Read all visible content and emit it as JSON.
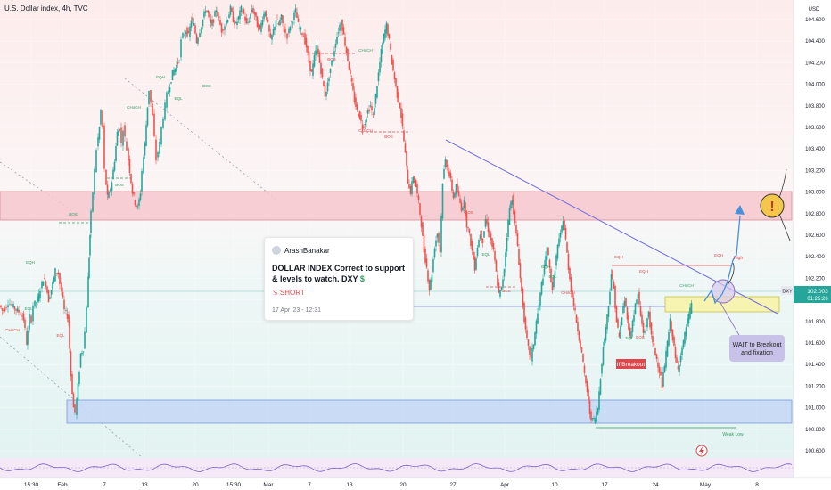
{
  "header": {
    "title": "U.S. Dollar index, 4h, TVC",
    "currency": "USD"
  },
  "idea_card": {
    "author": "ArashBanakar",
    "title": "DOLLAR INDEX Correct to support & levels to watch. DXY",
    "ticker_symbol": "$",
    "direction": "↘ SHORT",
    "date": "17 Apr '23 - 12:31"
  },
  "price_axis": {
    "ticks": [
      "104.600",
      "104.400",
      "104.200",
      "104.000",
      "103.800",
      "103.600",
      "103.400",
      "103.200",
      "103.000",
      "102.800",
      "102.600",
      "102.400",
      "102.200",
      "102.000",
      "101.800",
      "101.600",
      "101.400",
      "101.200",
      "101.000",
      "100.800",
      "100.600"
    ],
    "current_symbol": "DXY",
    "current_price": "102.003",
    "current_timer": "01:25:26"
  },
  "time_axis": {
    "labels": [
      "15:30",
      "Feb",
      "7",
      "13",
      "20",
      "15:30",
      "Mar",
      "7",
      "13",
      "20",
      "27",
      "Apr",
      "10",
      "17",
      "24",
      "May",
      "8"
    ]
  },
  "annotations": {
    "wait_note": [
      "WAIT to Breakout",
      "and fixation"
    ],
    "if_breakout": "If Breakout",
    "weak_low": "Weak Low",
    "high": "High",
    "alert_mark": "!"
  },
  "structure_labels": [
    "EQH",
    "EQL",
    "CHoCH",
    "BOS",
    "EQL",
    "CHoCH",
    "BOS",
    "EQH",
    "EQL",
    "BOS",
    "CHoCH",
    "BOS",
    "CHoCH",
    "BOS",
    "EQL",
    "BOS",
    "EQH",
    "EQL",
    "BOS",
    "CHoCH",
    "EQH",
    "EQH",
    "EQL",
    "BOS",
    "CHoCH",
    "EQH"
  ],
  "colors": {
    "up": "#26a69a",
    "down": "#ef5350",
    "resistance_zone": "#f4c7cd",
    "support_zone": "#c7d8f6",
    "trendline": "#6f6be0",
    "projection": "#4a90d9",
    "highlight": "#f7f3b0",
    "note_bg": "#c9c2e8",
    "alert": "#f3c64c"
  },
  "chart_data": {
    "type": "candlestick",
    "title": "U.S. Dollar index, 4h, TVC",
    "ylim": [
      100.5,
      104.7
    ],
    "zones": [
      {
        "name": "resistance",
        "from": 102.66,
        "to": 102.9
      },
      {
        "name": "support",
        "from": 100.82,
        "to": 101.05
      },
      {
        "name": "breakout_box",
        "from": 101.87,
        "to": 102.0
      }
    ],
    "path_x": [
      0,
      3,
      6,
      10,
      14,
      17,
      20,
      24,
      27,
      29,
      30,
      32,
      34,
      36,
      38,
      41,
      44,
      46,
      49,
      52,
      55,
      58,
      61,
      63,
      66,
      68,
      71,
      73,
      76,
      77,
      80,
      83,
      85,
      88,
      91,
      94,
      96,
      98,
      99,
      100,
      101,
      103,
      105,
      107,
      109,
      112,
      114,
      116,
      118,
      121,
      123,
      126,
      129,
      132,
      135,
      137,
      139,
      143,
      146,
      149,
      152,
      155,
      158,
      160,
      163,
      166,
      168,
      172,
      174,
      176,
      180,
      182,
      186,
      188,
      191,
      194,
      197,
      200,
      202,
      204,
      206,
      209,
      212,
      215,
      218,
      221,
      225,
      228,
      231,
      234,
      237,
      240,
      243,
      246,
      249,
      253,
      256,
      259,
      262,
      265,
      268,
      271,
      274,
      277,
      280,
      283,
      286,
      289,
      292,
      295,
      298,
      301,
      304,
      307,
      310,
      313,
      316,
      319,
      323,
      326,
      329,
      332,
      335,
      338,
      341,
      344,
      347,
      350,
      353,
      356,
      359,
      362,
      365,
      368,
      371,
      374,
      377,
      380,
      383,
      386,
      389,
      392,
      395,
      398,
      401,
      404,
      407,
      410,
      413,
      416,
      419,
      422,
      425,
      428,
      431,
      434,
      437,
      440,
      443,
      446,
      449,
      452,
      455,
      458,
      461,
      464,
      467,
      470,
      473,
      476,
      479,
      482,
      485,
      488,
      491,
      494,
      497,
      500,
      503,
      506,
      509,
      512,
      515,
      518,
      521,
      524,
      527,
      530,
      533,
      536,
      539,
      542,
      545,
      548,
      551,
      554,
      557,
      560,
      563,
      566,
      569,
      572,
      575,
      578,
      581,
      584,
      587,
      590,
      593,
      596,
      599,
      602,
      605,
      608,
      611,
      614,
      617,
      620,
      623,
      626,
      629,
      632,
      635,
      638,
      641,
      644,
      647,
      650,
      653,
      656,
      659,
      662,
      665,
      668,
      671,
      674,
      677,
      680,
      683,
      686,
      689,
      692,
      695,
      698,
      701,
      704,
      707,
      710,
      713,
      716,
      719,
      722,
      725,
      728,
      731,
      734,
      737,
      740,
      743,
      746,
      749,
      752,
      755,
      758,
      761,
      764,
      767,
      770,
      773,
      776,
      779,
      782,
      785,
      788
    ],
    "path_y": [
      101.95,
      101.9,
      101.92,
      101.98,
      101.95,
      101.92,
      101.9,
      101.88,
      101.82,
      101.72,
      101.6,
      101.7,
      101.85,
      101.82,
      101.95,
      101.98,
      102.04,
      102.1,
      102.2,
      102.15,
      102.0,
      102.1,
      102.2,
      102.27,
      102.25,
      102.15,
      102.0,
      101.9,
      101.85,
      101.8,
      101.3,
      101.0,
      100.95,
      101.2,
      101.5,
      101.55,
      101.7,
      101.95,
      102.2,
      102.4,
      102.6,
      102.8,
      103.0,
      103.2,
      103.4,
      103.6,
      103.75,
      103.6,
      103.2,
      102.95,
      102.98,
      103.1,
      103.3,
      103.55,
      103.6,
      103.45,
      103.6,
      103.4,
      103.2,
      103.0,
      102.9,
      102.85,
      103.0,
      103.2,
      103.45,
      103.8,
      103.95,
      103.7,
      103.5,
      103.3,
      103.45,
      103.6,
      103.8,
      103.9,
      104.0,
      104.1,
      104.15,
      104.2,
      104.25,
      104.4,
      104.45,
      104.5,
      104.45,
      104.6,
      104.55,
      104.4,
      104.5,
      104.6,
      104.7,
      104.65,
      104.55,
      104.6,
      104.7,
      104.6,
      104.5,
      104.55,
      104.62,
      104.7,
      104.6,
      104.55,
      104.62,
      104.7,
      104.65,
      104.55,
      104.6,
      104.7,
      104.65,
      104.55,
      104.5,
      104.62,
      104.68,
      104.55,
      104.4,
      104.5,
      104.6,
      104.55,
      104.62,
      104.5,
      104.45,
      104.55,
      104.6,
      104.68,
      104.55,
      104.5,
      104.45,
      104.35,
      104.2,
      104.1,
      104.25,
      104.35,
      104.2,
      104.05,
      103.9,
      104.0,
      104.15,
      104.25,
      104.4,
      104.5,
      104.6,
      104.45,
      104.3,
      104.15,
      104.0,
      103.85,
      103.75,
      103.7,
      103.6,
      103.65,
      103.75,
      103.8,
      103.7,
      103.9,
      104.1,
      104.3,
      104.45,
      104.55,
      104.4,
      104.2,
      104.05,
      103.9,
      103.8,
      103.6,
      103.35,
      103.1,
      103.0,
      103.15,
      103.05,
      102.9,
      102.7,
      102.45,
      102.3,
      102.1,
      102.25,
      102.5,
      102.62,
      102.45,
      103.1,
      103.3,
      103.2,
      103.1,
      102.95,
      103.05,
      102.95,
      102.85,
      102.9,
      102.7,
      102.6,
      102.45,
      102.3,
      102.5,
      102.62,
      102.55,
      102.75,
      102.65,
      102.55,
      102.45,
      102.25,
      102.05,
      102.1,
      102.3,
      102.6,
      102.85,
      102.95,
      102.7,
      102.5,
      102.2,
      101.95,
      101.7,
      101.55,
      101.45,
      101.6,
      101.8,
      101.95,
      102.15,
      102.3,
      102.5,
      102.28,
      102.1,
      102.3,
      102.5,
      102.6,
      102.75,
      102.55,
      102.3,
      102.1,
      101.95,
      101.8,
      101.65,
      101.5,
      101.3,
      101.15,
      100.95,
      100.88,
      100.9,
      101.0,
      101.3,
      101.55,
      101.75,
      101.95,
      102.25,
      102.1,
      101.8,
      101.65,
      101.85,
      102.0,
      101.85,
      101.65,
      101.8,
      101.95,
      102.05,
      101.85,
      101.7,
      101.75,
      101.9,
      101.65,
      101.55,
      101.45,
      101.35,
      101.2,
      101.4,
      101.6,
      101.8,
      101.65,
      101.45,
      101.35,
      101.5,
      101.6,
      101.75,
      101.85,
      101.95
    ]
  }
}
